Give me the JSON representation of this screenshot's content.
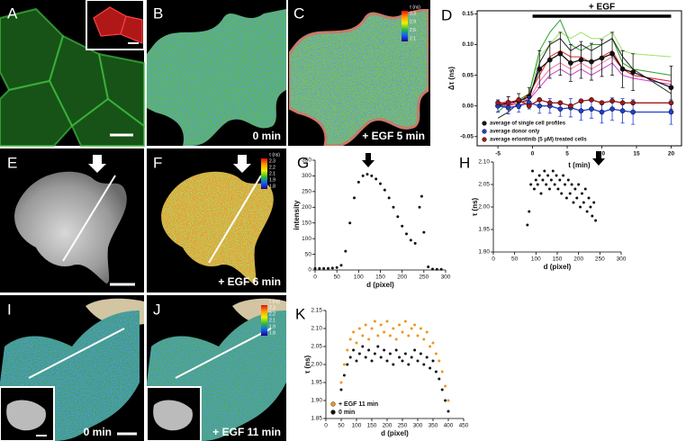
{
  "images": [
    {
      "label": "A"
    },
    {
      "label": "B",
      "caption": "0 min"
    },
    {
      "label": "C",
      "caption": "+ EGF 5 min",
      "colorbar": {
        "title": "τ (ns)",
        "ticks": [
          3.3,
          2.9,
          2.5,
          2.1
        ]
      }
    },
    {
      "label": "E"
    },
    {
      "label": "F",
      "caption": "+ EGF 6 min",
      "colorbar": {
        "title": "τ (ns)",
        "ticks": [
          2.3,
          2.2,
          2.1,
          1.9,
          1.8
        ]
      }
    },
    {
      "label": "I",
      "caption": "0 min"
    },
    {
      "label": "J",
      "caption": "+ EGF 11 min",
      "colorbar": {
        "title": "τ (ns)",
        "ticks": [
          2.3,
          2.2,
          2.1,
          1.9,
          1.8
        ]
      }
    }
  ],
  "chart_data": [
    {
      "type": "line",
      "label": "D",
      "xlabel": "t (min)",
      "ylabel": "Δτ (ns)",
      "box": true,
      "legend": "lower left",
      "annotation": {
        "text": "+ EGF",
        "from": 0,
        "to": 20
      },
      "xlim": [
        -8,
        21.5
      ],
      "ylim": [
        -0.065,
        0.155
      ],
      "xticks": [
        -5,
        0,
        5,
        10,
        15,
        20
      ],
      "yticks": [
        -0.05,
        {
          "value": 0,
          "label": "0.00"
        },
        0.05,
        {
          "value": 0.1,
          "label": "0.10"
        },
        0.15
      ],
      "x": [
        -5,
        -3.5,
        -2,
        -0.5,
        1,
        2.5,
        4,
        5.5,
        7,
        8.5,
        10,
        11.5,
        13,
        14.5,
        20
      ],
      "series": [
        {
          "color": "#9be36b",
          "values": [
            0.0,
            0.0,
            0.01,
            0.02,
            0.08,
            0.1,
            0.12,
            0.11,
            0.12,
            0.11,
            0.11,
            0.12,
            0.09,
            0.085,
            0.08
          ]
        },
        {
          "color": "#2ca02c",
          "values": [
            -0.01,
            0.005,
            0.01,
            0.02,
            0.09,
            0.12,
            0.14,
            0.1,
            0.09,
            0.1,
            0.1,
            0.11,
            0.07,
            0.06,
            0.05
          ]
        },
        {
          "color": "#ff6fa0",
          "values": [
            0.0,
            0.01,
            0.0,
            0.01,
            0.04,
            0.06,
            0.07,
            0.06,
            0.07,
            0.06,
            0.07,
            0.08,
            0.06,
            0.05,
            0.04
          ]
        },
        {
          "color": "#e8222a",
          "values": [
            0.0,
            0.0,
            0.005,
            0.02,
            0.05,
            0.08,
            0.09,
            0.08,
            0.08,
            0.07,
            0.08,
            0.09,
            0.06,
            0.05,
            0.04
          ]
        },
        {
          "color": "#c83cc8",
          "values": [
            0.005,
            0.0,
            0.01,
            0.01,
            0.03,
            0.05,
            0.06,
            0.05,
            0.06,
            0.05,
            0.06,
            0.07,
            0.05,
            0.045,
            0.035
          ]
        },
        {
          "color": "#222222",
          "values": [
            -0.02,
            -0.01,
            0.005,
            0.01,
            0.07,
            0.1,
            0.11,
            0.09,
            0.1,
            0.09,
            0.1,
            0.11,
            0.08,
            0.06,
            0.02
          ]
        },
        {
          "name": "average of single cell profiles",
          "color": "#111111",
          "markers": true,
          "values": [
            0.0,
            0.005,
            0.008,
            0.015,
            0.06,
            0.075,
            0.085,
            0.07,
            0.075,
            0.072,
            0.078,
            0.085,
            0.06,
            0.055,
            0.03
          ],
          "errors": [
            0.01,
            0.01,
            0.012,
            0.015,
            0.03,
            0.03,
            0.035,
            0.03,
            0.03,
            0.03,
            0.03,
            0.035,
            0.03,
            0.03,
            0.035
          ]
        },
        {
          "name": "average donor only",
          "color": "#1f3fd0",
          "markers": true,
          "values": [
            0.0,
            -0.003,
            0.0,
            0.005,
            0.0,
            0.0,
            -0.005,
            -0.003,
            -0.008,
            -0.005,
            -0.01,
            -0.005,
            -0.008,
            -0.01,
            -0.01
          ],
          "errors": [
            0.01,
            0.01,
            0.01,
            0.01,
            0.012,
            0.012,
            0.012,
            0.015,
            0.015,
            0.015,
            0.018,
            0.018,
            0.02,
            0.02,
            0.02
          ]
        },
        {
          "name": "average erlontinib (5 μM) treated cells",
          "color": "#a01818",
          "markers": true,
          "values": [
            0.005,
            0.005,
            0.01,
            0.0,
            0.01,
            0.005,
            0.005,
            0.0,
            0.008,
            0.01,
            0.005,
            0.008,
            0.005,
            0.005,
            0.005
          ]
        }
      ]
    },
    {
      "type": "scatter",
      "label": "G",
      "xlabel": "d (pixel)",
      "ylabel": "intensity",
      "box": false,
      "xlim": [
        0,
        300
      ],
      "ylim": [
        0,
        350
      ],
      "xticks": [
        0,
        50,
        100,
        150,
        200,
        250,
        300
      ],
      "yticks": [
        0,
        50,
        100,
        150,
        200,
        250,
        300,
        350
      ],
      "x": [
        0,
        10,
        20,
        30,
        40,
        50,
        60,
        70,
        80,
        90,
        100,
        110,
        120,
        130,
        140,
        150,
        160,
        170,
        180,
        190,
        200,
        210,
        220,
        230,
        240,
        245,
        250,
        260,
        270,
        280,
        290
      ],
      "series": [
        {
          "color": "#111111",
          "values": [
            5,
            5,
            5,
            5,
            6,
            8,
            15,
            60,
            150,
            230,
            280,
            300,
            305,
            300,
            290,
            275,
            255,
            230,
            200,
            170,
            140,
            115,
            95,
            85,
            200,
            235,
            120,
            10,
            3,
            2,
            2
          ]
        }
      ]
    },
    {
      "type": "scatter",
      "label": "H",
      "xlabel": "d (pixel)",
      "ylabel": "τ (ns)",
      "box": false,
      "xlim": [
        0,
        300
      ],
      "ylim": [
        1.9,
        2.1
      ],
      "xticks": [
        0,
        50,
        100,
        150,
        200,
        250,
        300
      ],
      "yticks": [
        {
          "value": 1.9,
          "label": "1.90"
        },
        1.95,
        {
          "value": 2,
          "label": "2.00"
        },
        2.05,
        {
          "value": 2.1,
          "label": "2.10"
        }
      ],
      "x": [
        80,
        84,
        88,
        92,
        96,
        100,
        104,
        108,
        112,
        116,
        120,
        124,
        128,
        132,
        136,
        140,
        144,
        148,
        152,
        156,
        160,
        164,
        168,
        172,
        176,
        180,
        184,
        188,
        192,
        196,
        200,
        204,
        208,
        212,
        216,
        220,
        224,
        228,
        232,
        236,
        240
      ],
      "series": [
        {
          "color": "#111111",
          "values": [
            1.96,
            1.99,
            2.05,
            2.08,
            2.04,
            2.06,
            2.05,
            2.07,
            2.03,
            2.06,
            2.08,
            2.05,
            2.07,
            2.04,
            2.06,
            2.08,
            2.05,
            2.07,
            2.04,
            2.06,
            2.03,
            2.07,
            2.05,
            2.02,
            2.06,
            2.03,
            2.05,
            2.01,
            2.04,
            2.02,
            2.05,
            2.0,
            2.03,
            2.01,
            2.04,
            1.99,
            2.02,
            2.0,
            1.98,
            2.01,
            1.97
          ]
        }
      ]
    },
    {
      "type": "scatter",
      "label": "K",
      "xlabel": "d (pixel)",
      "ylabel": "τ (ns)",
      "box": false,
      "legend": "lower left",
      "xlim": [
        0,
        450
      ],
      "ylim": [
        1.85,
        2.15
      ],
      "xticks": [
        0,
        50,
        100,
        150,
        200,
        250,
        300,
        350,
        400,
        450
      ],
      "yticks": [
        1.85,
        {
          "value": 1.9,
          "label": "1.90"
        },
        1.95,
        {
          "value": 2,
          "label": "2.00"
        },
        2.05,
        {
          "value": 2.1,
          "label": "2.10"
        },
        2.15
      ],
      "x": [
        50,
        60,
        70,
        80,
        90,
        100,
        110,
        120,
        130,
        140,
        150,
        160,
        170,
        180,
        190,
        200,
        210,
        220,
        230,
        240,
        250,
        260,
        270,
        280,
        290,
        300,
        310,
        320,
        330,
        340,
        350,
        360,
        370,
        380,
        390,
        400
      ],
      "series": [
        {
          "name": "+ EGF 11 min",
          "color": "#f0961e",
          "values": [
            1.95,
            2.0,
            2.04,
            2.07,
            2.09,
            2.06,
            2.1,
            2.08,
            2.11,
            2.07,
            2.1,
            2.12,
            2.08,
            2.11,
            2.09,
            2.12,
            2.08,
            2.1,
            2.07,
            2.11,
            2.09,
            2.12,
            2.08,
            2.1,
            2.11,
            2.08,
            2.1,
            2.07,
            2.09,
            2.05,
            2.06,
            2.03,
            2.01,
            1.98,
            1.94,
            1.9
          ]
        },
        {
          "name": "0 min",
          "color": "#111111",
          "values": [
            1.93,
            1.97,
            2.0,
            2.02,
            2.04,
            2.01,
            2.03,
            2.05,
            2.02,
            2.04,
            2.01,
            2.03,
            2.05,
            2.02,
            2.04,
            2.01,
            2.03,
            2.0,
            2.04,
            2.02,
            2.01,
            2.03,
            2.0,
            2.02,
            2.04,
            2.01,
            2.03,
            2.0,
            2.02,
            1.99,
            2.01,
            1.98,
            1.96,
            1.93,
            1.9,
            1.87
          ]
        }
      ]
    }
  ]
}
